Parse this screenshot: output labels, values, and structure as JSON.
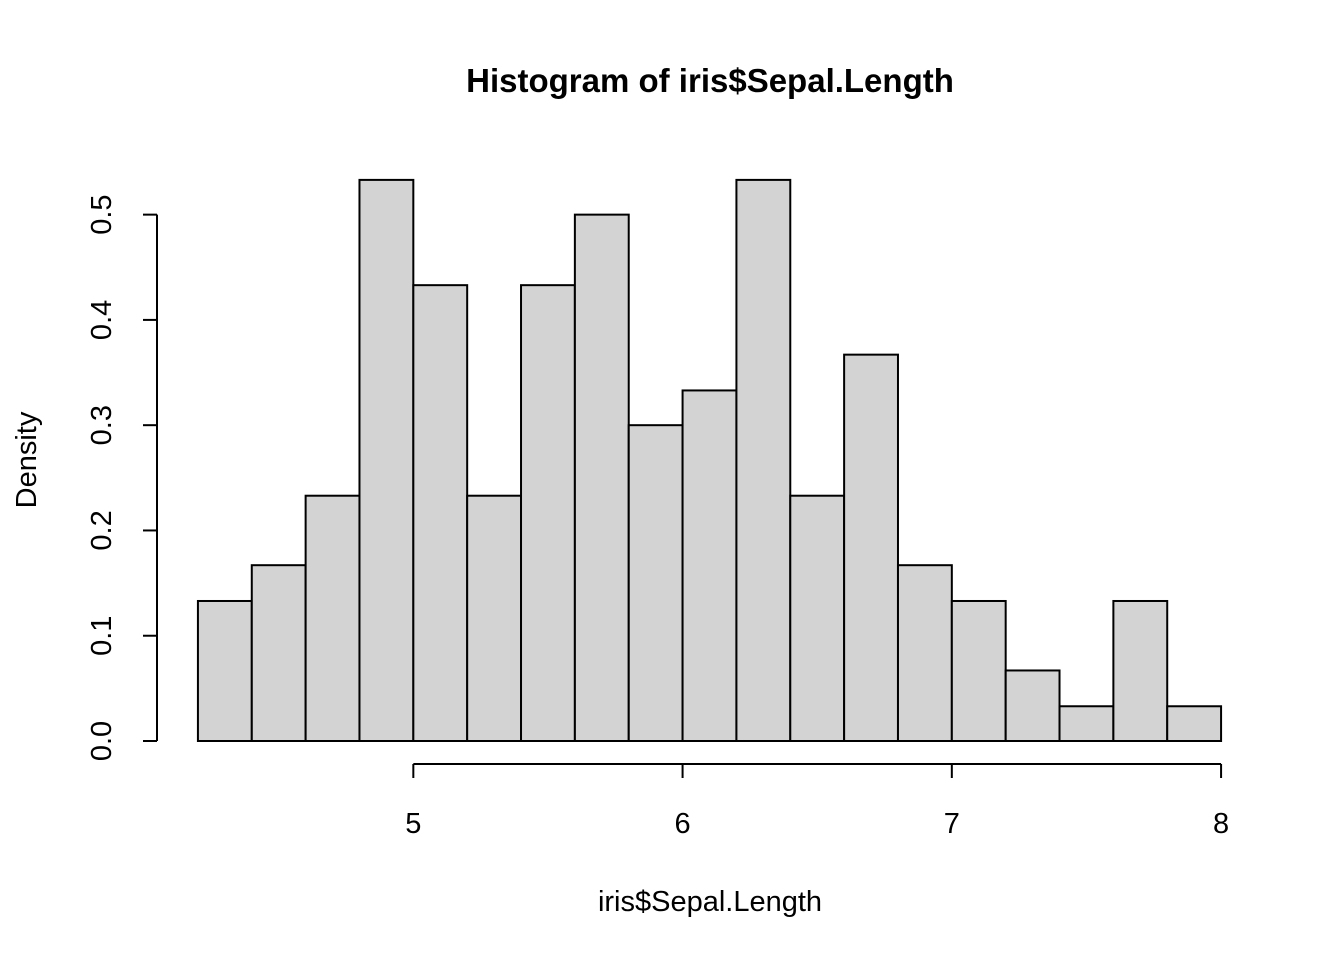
{
  "chart_data": {
    "type": "histogram",
    "title": "Histogram of iris$Sepal.Length",
    "x_label": "iris$Sepal.Length",
    "y_label": "Density",
    "bins": [
      4.2,
      4.4,
      4.6,
      4.8,
      5.0,
      5.2,
      5.4,
      5.6,
      5.8,
      6.0,
      6.2,
      6.4,
      6.6,
      6.8,
      7.0,
      7.2,
      7.4,
      7.6,
      7.8,
      8.0
    ],
    "values": [
      0.133,
      0.167,
      0.233,
      0.533,
      0.433,
      0.233,
      0.433,
      0.5,
      0.3,
      0.333,
      0.533,
      0.233,
      0.367,
      0.167,
      0.133,
      0.067,
      0.033,
      0.133,
      0.033
    ],
    "color": "#d3d3d3",
    "xlim": [
      4.048,
      8.152
    ],
    "xticks": [
      5,
      6,
      7,
      8
    ],
    "ylim": [
      0,
      0.55
    ],
    "yticks": [
      {
        "value": 0,
        "label": "0.0"
      },
      0.1,
      0.2,
      0.3,
      0.4,
      0.5
    ]
  }
}
